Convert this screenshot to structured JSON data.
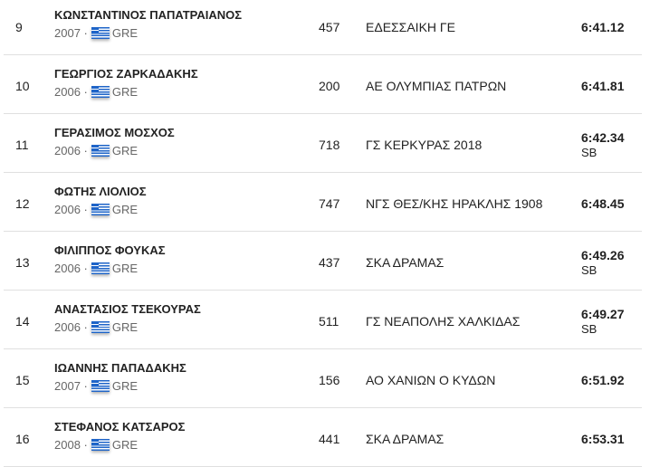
{
  "results": [
    {
      "rank": "9",
      "name": "ΚΩΝΣΤΑΝΤΙΝΟΣ ΠΑΠΑΤΡΑΙΑΝΟΣ",
      "year": "2007",
      "country": "GRE",
      "bib": "457",
      "club": "ΕΔΕΣΣΑΙΚΗ ΓΕ",
      "time": "6:41.12",
      "note": ""
    },
    {
      "rank": "10",
      "name": "ΓΕΩΡΓΙΟΣ ΖΑΡΚΑΔΑΚΗΣ",
      "year": "2006",
      "country": "GRE",
      "bib": "200",
      "club": "ΑΕ ΟΛΥΜΠΙΑΣ ΠΑΤΡΩΝ",
      "time": "6:41.81",
      "note": ""
    },
    {
      "rank": "11",
      "name": "ΓΕΡΑΣΙΜΟΣ ΜΟΣΧΟΣ",
      "year": "2006",
      "country": "GRE",
      "bib": "718",
      "club": "ΓΣ ΚΕΡΚΥΡΑΣ 2018",
      "time": "6:42.34",
      "note": "SB"
    },
    {
      "rank": "12",
      "name": "ΦΩΤΗΣ ΛΙΟΛΙΟΣ",
      "year": "2006",
      "country": "GRE",
      "bib": "747",
      "club": "ΝΓΣ ΘΕΣ/ΚΗΣ ΗΡΑΚΛΗΣ 1908",
      "time": "6:48.45",
      "note": ""
    },
    {
      "rank": "13",
      "name": "ΦΙΛΙΠΠΟΣ ΦΟΥΚΑΣ",
      "year": "2006",
      "country": "GRE",
      "bib": "437",
      "club": "ΣΚΑ ΔΡΑΜΑΣ",
      "time": "6:49.26",
      "note": "SB"
    },
    {
      "rank": "14",
      "name": "ΑΝΑΣΤΑΣΙΟΣ ΤΣΕΚΟΥΡΑΣ",
      "year": "2006",
      "country": "GRE",
      "bib": "511",
      "club": "ΓΣ ΝΕΑΠΟΛΗΣ ΧΑΛΚΙΔΑΣ",
      "time": "6:49.27",
      "note": "SB"
    },
    {
      "rank": "15",
      "name": "ΙΩΑΝΝΗΣ ΠΑΠΑΔΑΚΗΣ",
      "year": "2007",
      "country": "GRE",
      "bib": "156",
      "club": "ΑΟ ΧΑΝΙΩΝ Ο ΚΥΔΩΝ",
      "time": "6:51.92",
      "note": ""
    },
    {
      "rank": "16",
      "name": "ΣΤΕΦΑΝΟΣ ΚΑΤΣΑΡΟΣ",
      "year": "2008",
      "country": "GRE",
      "bib": "441",
      "club": "ΣΚΑ ΔΡΑΜΑΣ",
      "time": "6:53.31",
      "note": ""
    }
  ],
  "separator": "·",
  "flag_icon": "greece-flag-icon"
}
